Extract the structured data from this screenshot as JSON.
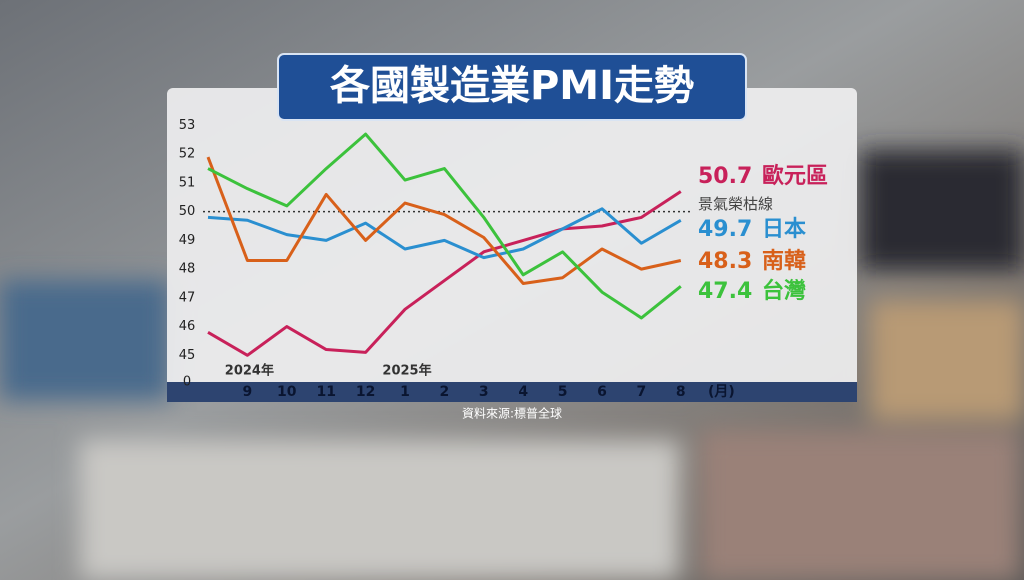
{
  "chart_data": {
    "type": "line",
    "title": "各國製造業PMI走勢",
    "categories": [
      null,
      "9",
      "10",
      "11",
      "12",
      "1",
      "2",
      "3",
      "4",
      "5",
      "6",
      "7",
      "8"
    ],
    "x_unit": "(月)",
    "year_labels": [
      "2024年",
      "2025年"
    ],
    "series": [
      {
        "name": "歐元區",
        "color": "#c8215a",
        "values": [
          45.8,
          45.0,
          46.0,
          45.2,
          45.1,
          46.6,
          47.6,
          48.6,
          49.0,
          49.4,
          49.5,
          49.8,
          50.7
        ]
      },
      {
        "name": "日本",
        "color": "#2a8fd0",
        "values": [
          49.8,
          49.7,
          49.2,
          49.0,
          49.6,
          48.7,
          49.0,
          48.4,
          48.7,
          49.4,
          50.1,
          48.9,
          49.7
        ]
      },
      {
        "name": "南韓",
        "color": "#d8601a",
        "values": [
          51.9,
          48.3,
          48.3,
          50.6,
          49.0,
          50.3,
          49.9,
          49.1,
          47.5,
          47.7,
          48.7,
          48.0,
          48.3
        ]
      },
      {
        "name": "台灣",
        "color": "#3cc23c",
        "values": [
          51.5,
          50.8,
          50.2,
          51.5,
          52.7,
          51.1,
          51.5,
          49.8,
          47.8,
          48.6,
          47.2,
          46.3,
          47.4
        ]
      }
    ],
    "reference_line": {
      "value": 50,
      "label": "景氣榮枯線"
    },
    "ylim": [
      44,
      53.4
    ],
    "yticks": [
      {
        "value": 0,
        "label": "0"
      },
      45,
      46,
      47,
      48,
      49,
      50,
      51,
      52,
      53
    ],
    "source": "資料來源:標普全球"
  }
}
